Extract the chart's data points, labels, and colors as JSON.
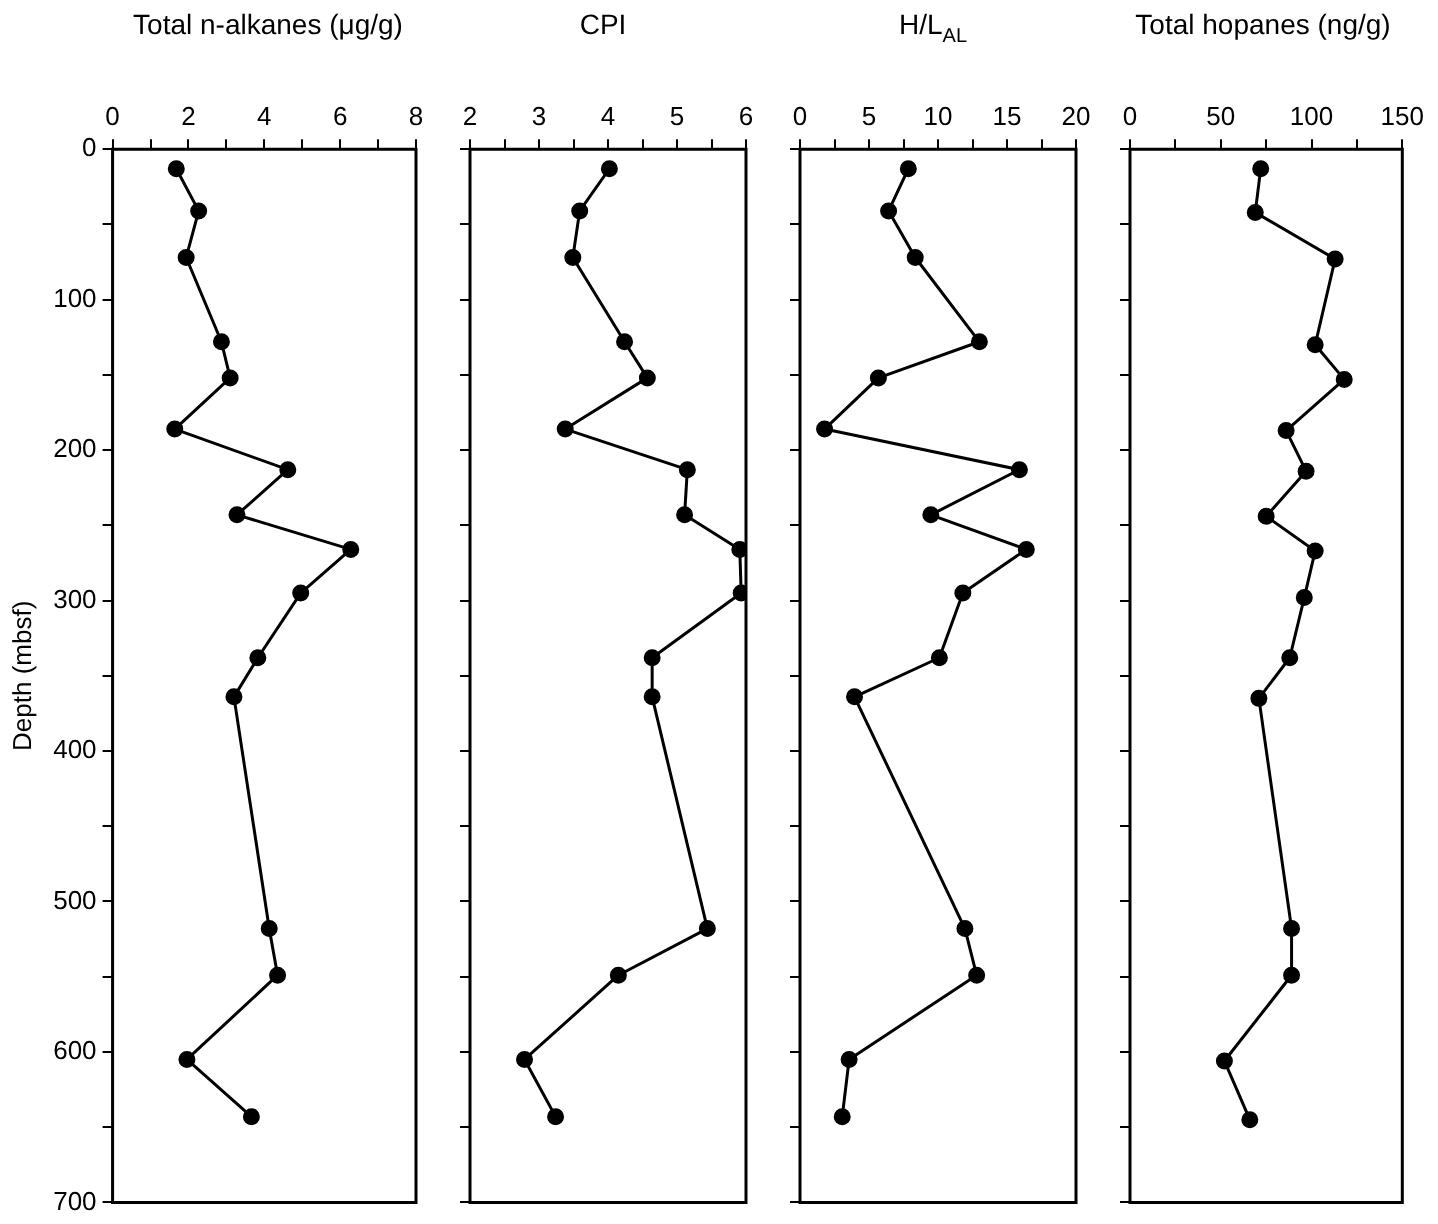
{
  "chart_data": [
    {
      "type": "line",
      "title": "Total n-alkanes (μg/g)",
      "ylabel": "Depth (mbsf)",
      "color": "#000000",
      "marker": "circle",
      "line_style": "solid",
      "grid": false,
      "x": [
        1.68,
        2.27,
        1.94,
        2.87,
        3.1,
        1.64,
        4.62,
        3.28,
        6.28,
        4.96,
        3.83,
        3.2,
        4.13,
        4.35,
        1.96,
        3.66
      ],
      "values": [
        13,
        41,
        72,
        128,
        152,
        186,
        213,
        243,
        266,
        295,
        338,
        364,
        518,
        549,
        605,
        643
      ],
      "xlim": [
        0,
        8
      ],
      "xticks": [
        0,
        {
          "value": 1,
          "label": null
        },
        2,
        {
          "value": 3,
          "label": null
        },
        4,
        {
          "value": 5,
          "label": null
        },
        6,
        {
          "value": 7,
          "label": null
        },
        8
      ],
      "ylim": [
        700,
        0
      ],
      "yticks": [
        0,
        {
          "value": 50,
          "label": null
        },
        100,
        {
          "value": 150,
          "label": null
        },
        200,
        {
          "value": 250,
          "label": null
        },
        300,
        {
          "value": 350,
          "label": null
        },
        400,
        {
          "value": 450,
          "label": null
        },
        500,
        {
          "value": 550,
          "label": null
        },
        600,
        {
          "value": 650,
          "label": null
        },
        700
      ]
    },
    {
      "type": "line",
      "title": "CPI",
      "color": "#000000",
      "marker": "circle",
      "line_style": "solid",
      "grid": false,
      "tick_labels": "x",
      "x": [
        4.02,
        3.59,
        3.49,
        4.24,
        4.57,
        3.38,
        5.15,
        5.11,
        5.91,
        5.93,
        4.64,
        4.64,
        5.44,
        4.15,
        2.79,
        3.24
      ],
      "values": [
        13,
        41,
        72,
        128,
        152,
        186,
        213,
        243,
        266,
        295,
        338,
        364,
        518,
        549,
        605,
        643
      ],
      "xlim": [
        2,
        6
      ],
      "xticks": [
        2,
        {
          "value": 2.5,
          "label": null
        },
        3,
        {
          "value": 3.5,
          "label": null
        },
        4,
        {
          "value": 4.5,
          "label": null
        },
        5,
        {
          "value": 5.5,
          "label": null
        },
        6
      ],
      "ylim": [
        700,
        0
      ],
      "yticks": [
        0,
        {
          "value": 50,
          "label": null
        },
        100,
        {
          "value": 150,
          "label": null
        },
        200,
        {
          "value": 250,
          "label": null
        },
        300,
        {
          "value": 350,
          "label": null
        },
        400,
        {
          "value": 450,
          "label": null
        },
        500,
        {
          "value": 550,
          "label": null
        },
        600,
        {
          "value": 650,
          "label": null
        },
        700
      ]
    },
    {
      "type": "line",
      "title": "H/L$_{AL}$",
      "color": "#000000",
      "marker": "circle",
      "line_style": "solid",
      "grid": false,
      "tick_labels": "x",
      "x": [
        7.85,
        6.42,
        8.35,
        13.0,
        5.68,
        1.78,
        15.9,
        9.48,
        16.4,
        11.8,
        10.1,
        3.95,
        11.95,
        12.8,
        3.56,
        3.06
      ],
      "values": [
        13,
        41,
        72,
        128,
        152,
        186,
        213,
        243,
        266,
        295,
        338,
        364,
        518,
        549,
        605,
        643
      ],
      "xlim": [
        0,
        20
      ],
      "xticks": [
        0,
        {
          "value": 2.5,
          "label": null
        },
        5,
        {
          "value": 7.5,
          "label": null
        },
        10,
        {
          "value": 12.5,
          "label": null
        },
        15,
        {
          "value": 17.5,
          "label": null
        },
        20
      ],
      "ylim": [
        700,
        0
      ],
      "yticks": [
        0,
        {
          "value": 50,
          "label": null
        },
        100,
        {
          "value": 150,
          "label": null
        },
        200,
        {
          "value": 250,
          "label": null
        },
        300,
        {
          "value": 350,
          "label": null
        },
        400,
        {
          "value": 450,
          "label": null
        },
        500,
        {
          "value": 550,
          "label": null
        },
        600,
        {
          "value": 650,
          "label": null
        },
        700
      ]
    },
    {
      "type": "line",
      "title": "Total hopanes (ng/g)",
      "color": "#000000",
      "marker": "circle",
      "line_style": "solid",
      "grid": false,
      "tick_labels": "x",
      "x": [
        72,
        69,
        113,
        102,
        118,
        86,
        97,
        75,
        102,
        96,
        88,
        71,
        89,
        89,
        52,
        66
      ],
      "values": [
        13,
        42,
        73,
        130,
        153,
        187,
        214,
        244,
        267,
        298,
        338,
        365,
        518,
        549,
        606,
        645
      ],
      "xlim": [
        0,
        150
      ],
      "xticks": [
        0,
        {
          "value": 25,
          "label": null
        },
        50,
        {
          "value": 75,
          "label": null
        },
        100,
        {
          "value": 125,
          "label": null
        },
        150
      ],
      "ylim": [
        700,
        0
      ],
      "yticks": [
        0,
        {
          "value": 50,
          "label": null
        },
        100,
        {
          "value": 150,
          "label": null
        },
        200,
        {
          "value": 250,
          "label": null
        },
        300,
        {
          "value": 350,
          "label": null
        },
        400,
        {
          "value": 450,
          "label": null
        },
        500,
        {
          "value": 550,
          "label": null
        },
        600,
        {
          "value": 650,
          "label": null
        },
        700
      ]
    }
  ]
}
